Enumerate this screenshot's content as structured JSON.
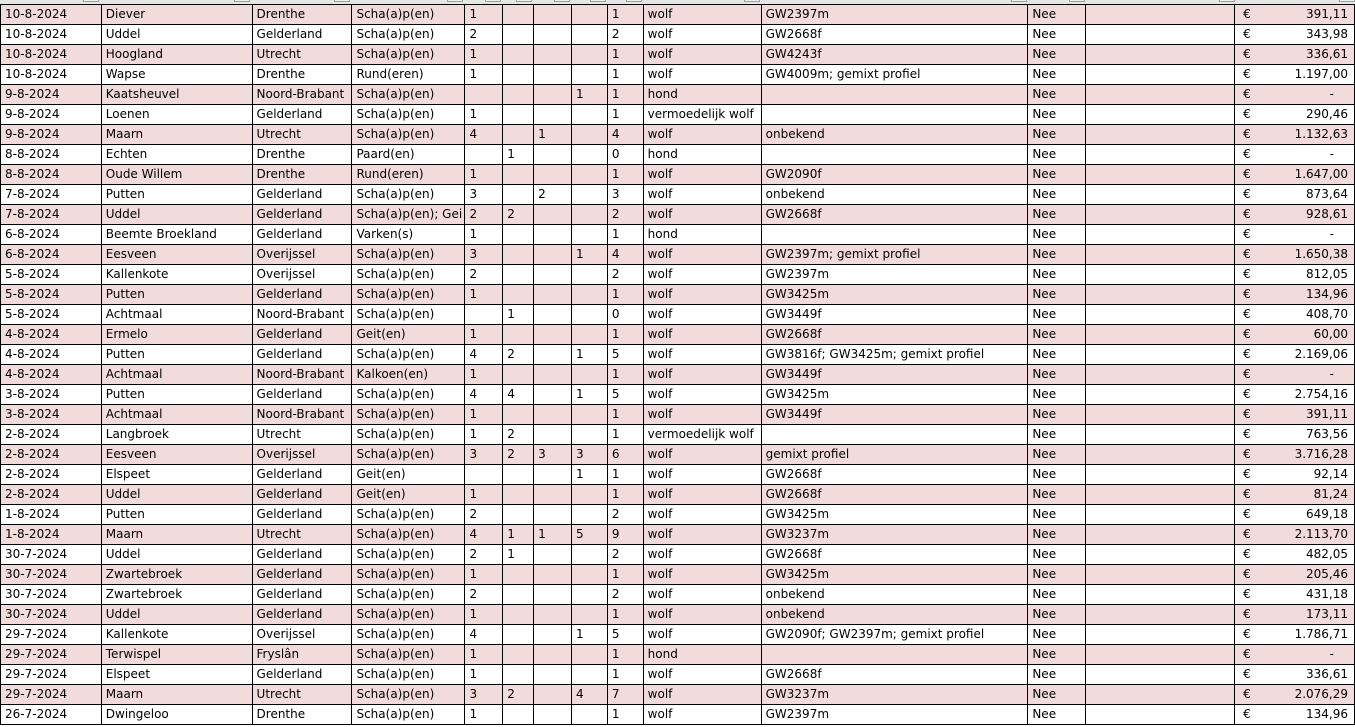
{
  "colors": {
    "band": "#f2dcdb",
    "grid": "#000000"
  },
  "rows": [
    [
      "10-8-2024",
      "Diever",
      "Drenthe",
      "Scha(a)p(en)",
      "1",
      "",
      "",
      "",
      "1",
      "wolf",
      "GW2397m",
      "Nee",
      "",
      "391,11"
    ],
    [
      "10-8-2024",
      "Uddel",
      "Gelderland",
      "Scha(a)p(en)",
      "2",
      "",
      "",
      "",
      "2",
      "wolf",
      "GW2668f",
      "Nee",
      "",
      "343,98"
    ],
    [
      "10-8-2024",
      "Hoogland",
      "Utrecht",
      "Scha(a)p(en)",
      "1",
      "",
      "",
      "",
      "1",
      "wolf",
      "GW4243f",
      "Nee",
      "",
      "336,61"
    ],
    [
      "10-8-2024",
      "Wapse",
      "Drenthe",
      "Rund(eren)",
      "1",
      "",
      "",
      "",
      "1",
      "wolf",
      "GW4009m; gemixt profiel",
      "Nee",
      "",
      "1.197,00"
    ],
    [
      "9-8-2024",
      "Kaatsheuvel",
      "Noord-Brabant",
      "Scha(a)p(en)",
      "",
      "",
      "",
      "1",
      "1",
      "hond",
      "",
      "Nee",
      "",
      "-"
    ],
    [
      "9-8-2024",
      "Loenen",
      "Gelderland",
      "Scha(a)p(en)",
      "1",
      "",
      "",
      "",
      "1",
      "vermoedelijk wolf",
      "",
      "Nee",
      "",
      "290,46"
    ],
    [
      "9-8-2024",
      "Maarn",
      "Utrecht",
      "Scha(a)p(en)",
      "4",
      "",
      "1",
      "",
      "4",
      "wolf",
      "onbekend",
      "Nee",
      "",
      "1.132,63"
    ],
    [
      "8-8-2024",
      "Echten",
      "Drenthe",
      "Paard(en)",
      "",
      "1",
      "",
      "",
      "0",
      "hond",
      "",
      "Nee",
      "",
      "-"
    ],
    [
      "8-8-2024",
      "Oude Willem",
      "Drenthe",
      "Rund(eren)",
      "1",
      "",
      "",
      "",
      "1",
      "wolf",
      "GW2090f",
      "Nee",
      "",
      "1.647,00"
    ],
    [
      "7-8-2024",
      "Putten",
      "Gelderland",
      "Scha(a)p(en)",
      "3",
      "",
      "2",
      "",
      "3",
      "wolf",
      "onbekend",
      "Nee",
      "",
      "873,64"
    ],
    [
      "7-8-2024",
      "Uddel",
      "Gelderland",
      "Scha(a)p(en); Gei",
      "2",
      "2",
      "",
      "",
      "2",
      "wolf",
      "GW2668f",
      "Nee",
      "",
      "928,61"
    ],
    [
      "6-8-2024",
      "Beemte Broekland",
      "Gelderland",
      "Varken(s)",
      "1",
      "",
      "",
      "",
      "1",
      "hond",
      "",
      "Nee",
      "",
      "-"
    ],
    [
      "6-8-2024",
      "Eesveen",
      "Overijssel",
      "Scha(a)p(en)",
      "3",
      "",
      "",
      "1",
      "4",
      "wolf",
      "GW2397m; gemixt profiel",
      "Nee",
      "",
      "1.650,38"
    ],
    [
      "5-8-2024",
      "Kallenkote",
      "Overijssel",
      "Scha(a)p(en)",
      "2",
      "",
      "",
      "",
      "2",
      "wolf",
      "GW2397m",
      "Nee",
      "",
      "812,05"
    ],
    [
      "5-8-2024",
      "Putten",
      "Gelderland",
      "Scha(a)p(en)",
      "1",
      "",
      "",
      "",
      "1",
      "wolf",
      "GW3425m",
      "Nee",
      "",
      "134,96"
    ],
    [
      "5-8-2024",
      "Achtmaal",
      "Noord-Brabant",
      "Scha(a)p(en)",
      "",
      "1",
      "",
      "",
      "0",
      "wolf",
      "GW3449f",
      "Nee",
      "",
      "408,70"
    ],
    [
      "4-8-2024",
      "Ermelo",
      "Gelderland",
      "Geit(en)",
      "1",
      "",
      "",
      "",
      "1",
      "wolf",
      "GW2668f",
      "Nee",
      "",
      "60,00"
    ],
    [
      "4-8-2024",
      "Putten",
      "Gelderland",
      "Scha(a)p(en)",
      "4",
      "2",
      "",
      "1",
      "5",
      "wolf",
      "GW3816f; GW3425m; gemixt profiel",
      "Nee",
      "",
      "2.169,06"
    ],
    [
      "4-8-2024",
      "Achtmaal",
      "Noord-Brabant",
      "Kalkoen(en)",
      "1",
      "",
      "",
      "",
      "1",
      "wolf",
      "GW3449f",
      "Nee",
      "",
      "-"
    ],
    [
      "3-8-2024",
      "Putten",
      "Gelderland",
      "Scha(a)p(en)",
      "4",
      "4",
      "",
      "1",
      "5",
      "wolf",
      "GW3425m",
      "Nee",
      "",
      "2.754,16"
    ],
    [
      "3-8-2024",
      "Achtmaal",
      "Noord-Brabant",
      "Scha(a)p(en)",
      "1",
      "",
      "",
      "",
      "1",
      "wolf",
      "GW3449f",
      "Nee",
      "",
      "391,11"
    ],
    [
      "2-8-2024",
      "Langbroek",
      "Utrecht",
      "Scha(a)p(en)",
      "1",
      "2",
      "",
      "",
      "1",
      "vermoedelijk wolf",
      "",
      "Nee",
      "",
      "763,56"
    ],
    [
      "2-8-2024",
      "Eesveen",
      "Overijssel",
      "Scha(a)p(en)",
      "3",
      "2",
      "3",
      "3",
      "6",
      "wolf",
      "gemixt profiel",
      "Nee",
      "",
      "3.716,28"
    ],
    [
      "2-8-2024",
      "Elspeet",
      "Gelderland",
      "Geit(en)",
      "",
      "",
      "",
      "1",
      "1",
      "wolf",
      "GW2668f",
      "Nee",
      "",
      "92,14"
    ],
    [
      "2-8-2024",
      "Uddel",
      "Gelderland",
      "Geit(en)",
      "1",
      "",
      "",
      "",
      "1",
      "wolf",
      "GW2668f",
      "Nee",
      "",
      "81,24"
    ],
    [
      "1-8-2024",
      "Putten",
      "Gelderland",
      "Scha(a)p(en)",
      "2",
      "",
      "",
      "",
      "2",
      "wolf",
      "GW3425m",
      "Nee",
      "",
      "649,18"
    ],
    [
      "1-8-2024",
      "Maarn",
      "Utrecht",
      "Scha(a)p(en)",
      "4",
      "1",
      "1",
      "5",
      "9",
      "wolf",
      "GW3237m",
      "Nee",
      "",
      "2.113,70"
    ],
    [
      "30-7-2024",
      "Uddel",
      "Gelderland",
      "Scha(a)p(en)",
      "2",
      "1",
      "",
      "",
      "2",
      "wolf",
      "GW2668f",
      "Nee",
      "",
      "482,05"
    ],
    [
      "30-7-2024",
      "Zwartebroek",
      "Gelderland",
      "Scha(a)p(en)",
      "1",
      "",
      "",
      "",
      "1",
      "wolf",
      "GW3425m",
      "Nee",
      "",
      "205,46"
    ],
    [
      "30-7-2024",
      "Zwartebroek",
      "Gelderland",
      "Scha(a)p(en)",
      "2",
      "",
      "",
      "",
      "2",
      "wolf",
      "onbekend",
      "Nee",
      "",
      "431,18"
    ],
    [
      "30-7-2024",
      "Uddel",
      "Gelderland",
      "Scha(a)p(en)",
      "1",
      "",
      "",
      "",
      "1",
      "wolf",
      "onbekend",
      "Nee",
      "",
      "173,11"
    ],
    [
      "29-7-2024",
      "Kallenkote",
      "Overijssel",
      "Scha(a)p(en)",
      "4",
      "",
      "",
      "1",
      "5",
      "wolf",
      "GW2090f; GW2397m; gemixt profiel",
      "Nee",
      "",
      "1.786,71"
    ],
    [
      "29-7-2024",
      "Terwispel",
      "Fryslân",
      "Scha(a)p(en)",
      "1",
      "",
      "",
      "",
      "1",
      "hond",
      "",
      "Nee",
      "",
      "-"
    ],
    [
      "29-7-2024",
      "Elspeet",
      "Gelderland",
      "Scha(a)p(en)",
      "1",
      "",
      "",
      "",
      "1",
      "wolf",
      "GW2668f",
      "Nee",
      "",
      "336,61"
    ],
    [
      "29-7-2024",
      "Maarn",
      "Utrecht",
      "Scha(a)p(en)",
      "3",
      "2",
      "",
      "4",
      "7",
      "wolf",
      "GW3237m",
      "Nee",
      "",
      "2.076,29"
    ],
    [
      "26-7-2024",
      "Dwingeloo",
      "Drenthe",
      "Scha(a)p(en)",
      "1",
      "",
      "",
      "",
      "1",
      "wolf",
      "GW2397m",
      "Nee",
      "",
      "134,96"
    ]
  ],
  "currency_symbol": "€"
}
